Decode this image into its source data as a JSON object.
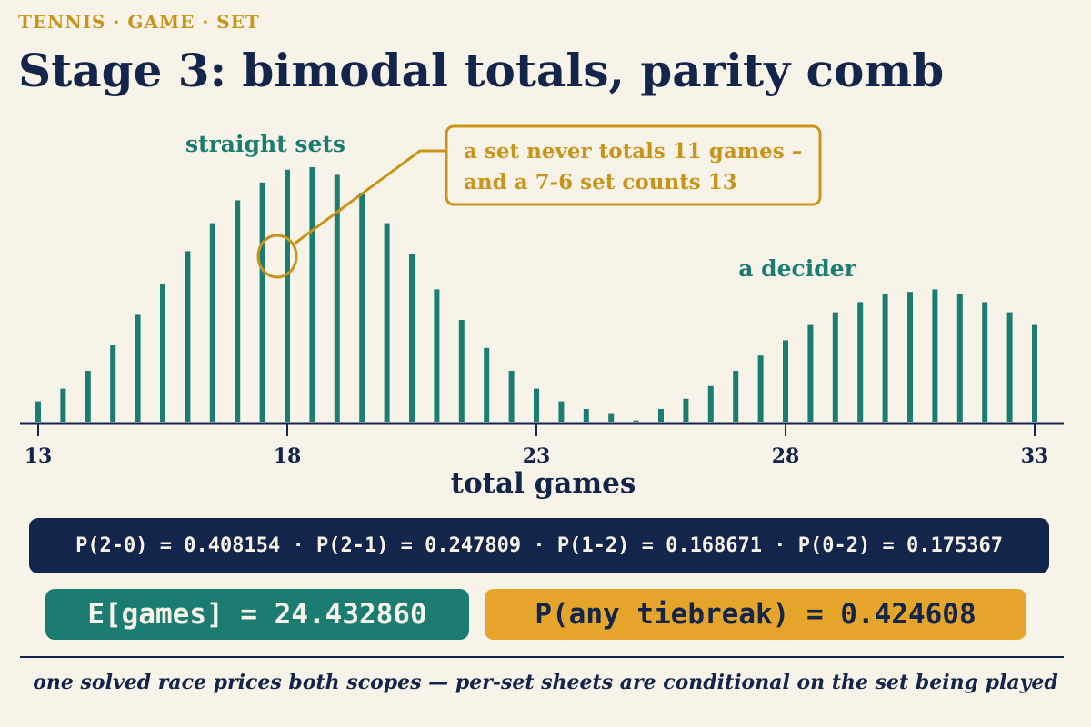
{
  "header": {
    "kicker": "TENNIS · GAME · SET",
    "title": "Stage 3: bimodal totals, parity comb"
  },
  "chart_data": {
    "type": "bar",
    "title": "Stage 3: bimodal totals, parity comb",
    "xlabel": "total games",
    "ylabel": "",
    "x_ticks": [
      13,
      18,
      23,
      28,
      33
    ],
    "xlim": [
      13,
      33
    ],
    "bar_step": 0.5,
    "x": [
      13.0,
      13.5,
      14.0,
      14.5,
      15.0,
      15.5,
      16.0,
      16.5,
      17.0,
      17.5,
      18.0,
      18.5,
      19.0,
      19.5,
      20.0,
      20.5,
      21.0,
      21.5,
      22.0,
      22.5,
      23.0,
      23.5,
      24.0,
      24.5,
      25.0,
      25.5,
      26.0,
      26.5,
      27.0,
      27.5,
      28.0,
      28.5,
      29.0,
      29.5,
      30.0,
      30.5,
      31.0,
      31.5,
      32.0,
      32.5,
      33.0
    ],
    "values": [
      0.08,
      0.13,
      0.2,
      0.3,
      0.42,
      0.54,
      0.67,
      0.78,
      0.87,
      0.94,
      0.99,
      1.0,
      0.97,
      0.9,
      0.78,
      0.66,
      0.52,
      0.4,
      0.29,
      0.2,
      0.13,
      0.08,
      0.05,
      0.03,
      0.005,
      0.05,
      0.09,
      0.14,
      0.2,
      0.26,
      0.32,
      0.38,
      0.43,
      0.47,
      0.5,
      0.51,
      0.52,
      0.5,
      0.47,
      0.43,
      0.38
    ],
    "annotations": {
      "left_peak": "straight sets",
      "right_peak": "a decider",
      "callout": [
        "a set never totals 11 games –",
        "and a 7-6 set counts 13"
      ]
    },
    "grid": false,
    "legend": "none",
    "colors": {
      "bars": "#1b7c71",
      "axis": "#13254a",
      "callout": "#c89419"
    }
  },
  "stats": {
    "probs_line": "P(2-0) = 0.408154 · P(2-1) = 0.247809 · P(1-2) = 0.168671 · P(0-2) = 0.175367",
    "expected_games": "E[games] = 24.432860",
    "any_tiebreak": "P(any tiebreak) = 0.424608"
  },
  "footer": {
    "note": "one solved race prices both scopes — per-set sheets are conditional on the set being played"
  }
}
